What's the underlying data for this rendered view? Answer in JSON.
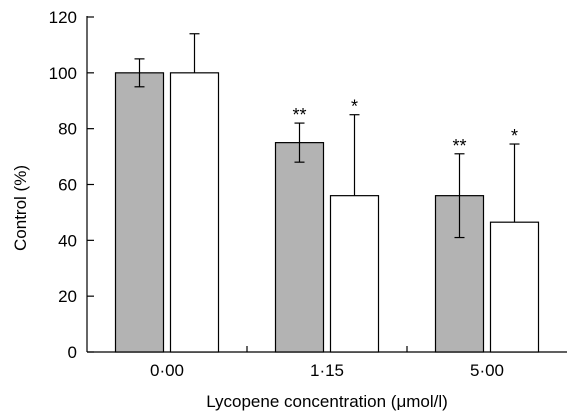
{
  "chart_data": {
    "type": "bar",
    "title": "",
    "xlabel": "Lycopene concentration (μmol/l)",
    "ylabel": "Control (%)",
    "ylim": [
      0,
      120
    ],
    "yticks": [
      "0",
      "20",
      "40",
      "60",
      "80",
      "100",
      "120"
    ],
    "categories": [
      "0·00",
      "1·15",
      "5·00"
    ],
    "grid": false,
    "legend": "none",
    "series": [
      {
        "fill": "#b3b3b3",
        "values": [
          100,
          75,
          56
        ],
        "error_upper": [
          105,
          82,
          71
        ],
        "error_lower": [
          95,
          68,
          41
        ],
        "annotations": [
          "",
          "**",
          "**"
        ]
      },
      {
        "fill": "#ffffff",
        "values": [
          100,
          56,
          46.5
        ],
        "error_upper": [
          114,
          85,
          74.5
        ],
        "error_lower": [
          100,
          56,
          46.5
        ],
        "annotations": [
          "",
          "*",
          "*"
        ]
      }
    ]
  }
}
